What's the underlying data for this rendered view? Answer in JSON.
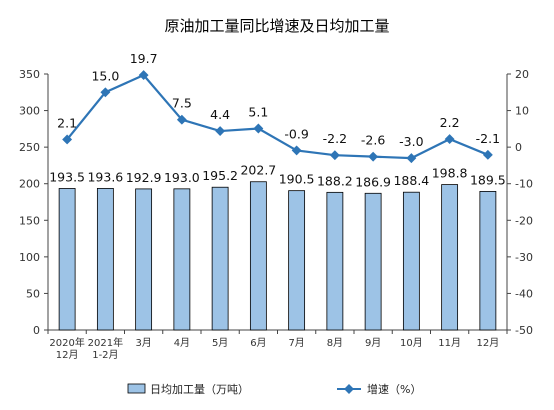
{
  "chart_data": {
    "type": "bar+line",
    "title": "原油加工量同比增速及日均加工量",
    "categories": [
      [
        "2020年",
        "12月"
      ],
      [
        "2021年",
        "1-2月"
      ],
      [
        "3月"
      ],
      [
        "4月"
      ],
      [
        "5月"
      ],
      [
        "6月"
      ],
      [
        "7月"
      ],
      [
        "8月"
      ],
      [
        "9月"
      ],
      [
        "10月"
      ],
      [
        "11月"
      ],
      [
        "12月"
      ]
    ],
    "series": [
      {
        "name": "日均加工量（万吨）",
        "type": "bar",
        "axis": "left",
        "color": "#9DC3E6",
        "values": [
          193.5,
          193.6,
          192.9,
          193.0,
          195.2,
          202.7,
          190.5,
          188.2,
          186.9,
          188.4,
          198.8,
          189.5
        ],
        "labels": [
          "193.5",
          "193.6",
          "192.9",
          "193.0",
          "195.2",
          "202.7",
          "190.5",
          "188.2",
          "186.9",
          "188.4",
          "198.8",
          "189.5"
        ]
      },
      {
        "name": "增速（%）",
        "type": "line",
        "axis": "right",
        "color": "#2E75B6",
        "values": [
          2.1,
          15.0,
          19.7,
          7.5,
          4.4,
          5.1,
          -0.9,
          -2.2,
          -2.6,
          -3.0,
          2.2,
          -2.1
        ],
        "labels": [
          "2.1",
          "15.0",
          "19.7",
          "7.5",
          "4.4",
          "5.1",
          "-0.9",
          "-2.2",
          "-2.6",
          "-3.0",
          "2.2",
          "-2.1"
        ]
      }
    ],
    "y_left": {
      "min": 0,
      "max": 350,
      "step": 50,
      "ticks": [
        "0",
        "50",
        "100",
        "150",
        "200",
        "250",
        "300",
        "350"
      ]
    },
    "y_right": {
      "min": -50,
      "max": 20,
      "step": 10,
      "ticks": [
        "-50",
        "-40",
        "-30",
        "-20",
        "-10",
        "0",
        "10",
        "20"
      ]
    },
    "legend_position": "bottom",
    "grid": false
  }
}
